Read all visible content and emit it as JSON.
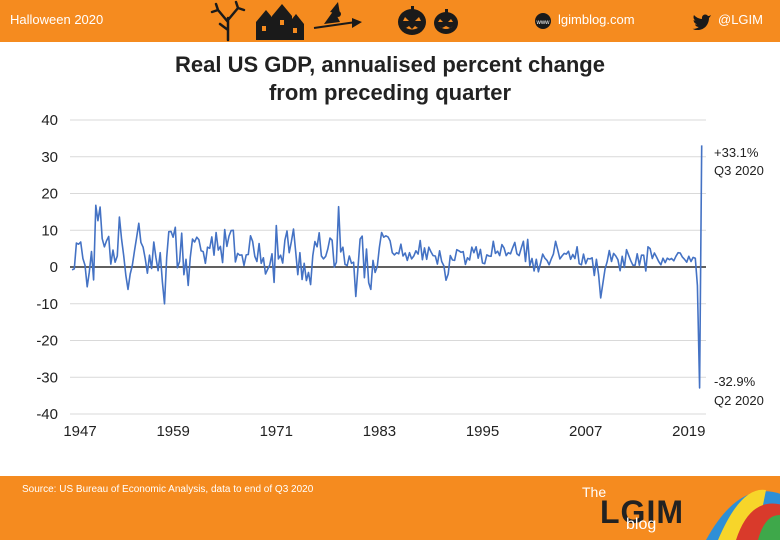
{
  "header": {
    "left_text": "Halloween 2020",
    "site_text": "lgimblog.com",
    "twitter_handle": "@LGIM",
    "icons": [
      "tree-icon",
      "haunted-house-icon",
      "witch-icon",
      "pumpkin-icon",
      "pumpkin-icon"
    ]
  },
  "footer": {
    "source": "Source: US Bureau of Economic Analysis, data to end of Q3 2020",
    "brand_the": "The",
    "brand_name": "LGIM",
    "brand_blog": "blog"
  },
  "colors": {
    "bar": "#f58b1f",
    "series": "#4472c4",
    "grid": "#d9d9d9"
  },
  "chart_data": {
    "type": "line",
    "title_line1": "Real US GDP, annualised percent change",
    "title_line2": "from preceding quarter",
    "xlabel": "",
    "ylabel": "",
    "ylim": [
      -40,
      40
    ],
    "yticks": [
      40,
      30,
      20,
      10,
      0,
      -10,
      -20,
      -30,
      -40
    ],
    "xlim": [
      1947,
      2021
    ],
    "xticks": [
      1947,
      1959,
      1971,
      1983,
      1995,
      2007,
      2019
    ],
    "grid": true,
    "legend": "none",
    "series": [
      {
        "values": [
          [
            1947.25,
            -0.8
          ],
          [
            1947.5,
            -0.5
          ],
          [
            1947.75,
            6.5
          ],
          [
            1948.0,
            6.2
          ],
          [
            1948.25,
            6.8
          ],
          [
            1948.5,
            2.3
          ],
          [
            1948.75,
            0.5
          ],
          [
            1949.0,
            -5.4
          ],
          [
            1949.25,
            -1.4
          ],
          [
            1949.5,
            4.2
          ],
          [
            1949.75,
            -3.5
          ],
          [
            1950.0,
            16.8
          ],
          [
            1950.25,
            12.6
          ],
          [
            1950.5,
            16.3
          ],
          [
            1950.75,
            7.7
          ],
          [
            1951.0,
            5.5
          ],
          [
            1951.25,
            7.1
          ],
          [
            1951.5,
            8.3
          ],
          [
            1951.75,
            0.8
          ],
          [
            1952.0,
            4.6
          ],
          [
            1952.25,
            1.3
          ],
          [
            1952.5,
            3.0
          ],
          [
            1952.75,
            13.6
          ],
          [
            1953.0,
            7.5
          ],
          [
            1953.25,
            3.1
          ],
          [
            1953.5,
            -2.4
          ],
          [
            1953.75,
            -6.1
          ],
          [
            1954.0,
            -1.9
          ],
          [
            1954.25,
            0.4
          ],
          [
            1954.5,
            4.4
          ],
          [
            1954.75,
            8.0
          ],
          [
            1955.0,
            11.9
          ],
          [
            1955.25,
            6.7
          ],
          [
            1955.5,
            5.4
          ],
          [
            1955.75,
            2.3
          ],
          [
            1956.0,
            -1.7
          ],
          [
            1956.25,
            3.2
          ],
          [
            1956.5,
            -0.4
          ],
          [
            1956.75,
            6.8
          ],
          [
            1957.0,
            2.6
          ],
          [
            1957.25,
            -1.0
          ],
          [
            1957.5,
            3.9
          ],
          [
            1957.75,
            -4.1
          ],
          [
            1958.0,
            -10.0
          ],
          [
            1958.25,
            2.6
          ],
          [
            1958.5,
            9.6
          ],
          [
            1958.75,
            9.7
          ],
          [
            1959.0,
            8.1
          ],
          [
            1959.25,
            10.8
          ],
          [
            1959.5,
            -0.2
          ],
          [
            1959.75,
            1.5
          ],
          [
            1960.0,
            9.2
          ],
          [
            1960.25,
            -2.1
          ],
          [
            1960.5,
            2.1
          ],
          [
            1960.75,
            -5.0
          ],
          [
            1961.0,
            2.7
          ],
          [
            1961.25,
            7.6
          ],
          [
            1961.5,
            6.8
          ],
          [
            1961.75,
            8.1
          ],
          [
            1962.0,
            7.4
          ],
          [
            1962.25,
            4.4
          ],
          [
            1962.5,
            4.2
          ],
          [
            1962.75,
            1.0
          ],
          [
            1963.0,
            5.4
          ],
          [
            1963.25,
            5.1
          ],
          [
            1963.5,
            8.2
          ],
          [
            1963.75,
            3.2
          ],
          [
            1964.0,
            9.4
          ],
          [
            1964.25,
            4.6
          ],
          [
            1964.5,
            5.6
          ],
          [
            1964.75,
            1.2
          ],
          [
            1965.0,
            10.2
          ],
          [
            1965.25,
            5.6
          ],
          [
            1965.5,
            8.4
          ],
          [
            1965.75,
            9.9
          ],
          [
            1966.0,
            10.0
          ],
          [
            1966.25,
            1.4
          ],
          [
            1966.5,
            3.7
          ],
          [
            1966.75,
            3.2
          ],
          [
            1967.0,
            3.3
          ],
          [
            1967.25,
            0.4
          ],
          [
            1967.5,
            3.3
          ],
          [
            1967.75,
            3.4
          ],
          [
            1968.0,
            8.5
          ],
          [
            1968.25,
            7.0
          ],
          [
            1968.5,
            2.9
          ],
          [
            1968.75,
            1.5
          ],
          [
            1969.0,
            6.4
          ],
          [
            1969.25,
            1.0
          ],
          [
            1969.5,
            2.5
          ],
          [
            1969.75,
            -1.9
          ],
          [
            1970.0,
            -0.6
          ],
          [
            1970.25,
            0.6
          ],
          [
            1970.5,
            3.6
          ],
          [
            1970.75,
            -4.2
          ],
          [
            1971.0,
            11.3
          ],
          [
            1971.25,
            2.2
          ],
          [
            1971.5,
            3.2
          ],
          [
            1971.75,
            1.1
          ],
          [
            1972.0,
            7.3
          ],
          [
            1972.25,
            9.8
          ],
          [
            1972.5,
            3.9
          ],
          [
            1972.75,
            6.8
          ],
          [
            1973.0,
            10.3
          ],
          [
            1973.25,
            4.4
          ],
          [
            1973.5,
            -2.1
          ],
          [
            1973.75,
            3.9
          ],
          [
            1974.0,
            -3.4
          ],
          [
            1974.25,
            1.0
          ],
          [
            1974.5,
            -3.7
          ],
          [
            1974.75,
            -1.5
          ],
          [
            1975.0,
            -4.8
          ],
          [
            1975.25,
            3.1
          ],
          [
            1975.5,
            6.9
          ],
          [
            1975.75,
            5.5
          ],
          [
            1976.0,
            9.3
          ],
          [
            1976.25,
            3.0
          ],
          [
            1976.5,
            2.2
          ],
          [
            1976.75,
            2.9
          ],
          [
            1977.0,
            4.9
          ],
          [
            1977.25,
            7.9
          ],
          [
            1977.5,
            7.3
          ],
          [
            1977.75,
            0.0
          ],
          [
            1978.0,
            1.3
          ],
          [
            1978.25,
            16.4
          ],
          [
            1978.5,
            4.1
          ],
          [
            1978.75,
            5.4
          ],
          [
            1979.0,
            0.7
          ],
          [
            1979.25,
            0.4
          ],
          [
            1979.5,
            3.0
          ],
          [
            1979.75,
            1.0
          ],
          [
            1980.0,
            1.3
          ],
          [
            1980.25,
            -8.0
          ],
          [
            1980.5,
            -0.5
          ],
          [
            1980.75,
            7.6
          ],
          [
            1981.0,
            8.4
          ],
          [
            1981.25,
            -2.9
          ],
          [
            1981.5,
            4.9
          ],
          [
            1981.75,
            -4.3
          ],
          [
            1982.0,
            -6.1
          ],
          [
            1982.25,
            1.8
          ],
          [
            1982.5,
            -1.5
          ],
          [
            1982.75,
            0.2
          ],
          [
            1983.0,
            5.4
          ],
          [
            1983.25,
            9.4
          ],
          [
            1983.5,
            8.1
          ],
          [
            1983.75,
            8.5
          ],
          [
            1984.0,
            8.2
          ],
          [
            1984.25,
            7.1
          ],
          [
            1984.5,
            3.9
          ],
          [
            1984.75,
            3.3
          ],
          [
            1985.0,
            3.9
          ],
          [
            1985.25,
            3.6
          ],
          [
            1985.5,
            6.2
          ],
          [
            1985.75,
            3.0
          ],
          [
            1986.0,
            3.8
          ],
          [
            1986.25,
            1.8
          ],
          [
            1986.5,
            3.9
          ],
          [
            1986.75,
            2.2
          ],
          [
            1987.0,
            3.0
          ],
          [
            1987.25,
            4.4
          ],
          [
            1987.5,
            3.5
          ],
          [
            1987.75,
            7.2
          ],
          [
            1988.0,
            2.0
          ],
          [
            1988.25,
            5.2
          ],
          [
            1988.5,
            2.1
          ],
          [
            1988.75,
            5.4
          ],
          [
            1989.0,
            4.1
          ],
          [
            1989.25,
            3.1
          ],
          [
            1989.5,
            3.0
          ],
          [
            1989.75,
            0.8
          ],
          [
            1990.0,
            4.4
          ],
          [
            1990.25,
            1.5
          ],
          [
            1990.5,
            0.3
          ],
          [
            1990.75,
            -3.6
          ],
          [
            1991.0,
            -1.9
          ],
          [
            1991.25,
            3.1
          ],
          [
            1991.5,
            1.9
          ],
          [
            1991.75,
            1.8
          ],
          [
            1992.0,
            4.7
          ],
          [
            1992.25,
            4.4
          ],
          [
            1992.5,
            4.0
          ],
          [
            1992.75,
            4.2
          ],
          [
            1993.0,
            0.7
          ],
          [
            1993.25,
            2.5
          ],
          [
            1993.5,
            1.9
          ],
          [
            1993.75,
            5.4
          ],
          [
            1994.0,
            3.9
          ],
          [
            1994.25,
            5.5
          ],
          [
            1994.5,
            2.4
          ],
          [
            1994.75,
            4.8
          ],
          [
            1995.0,
            1.1
          ],
          [
            1995.25,
            0.9
          ],
          [
            1995.5,
            3.3
          ],
          [
            1995.75,
            3.0
          ],
          [
            1996.0,
            2.9
          ],
          [
            1996.25,
            7.0
          ],
          [
            1996.5,
            3.7
          ],
          [
            1996.75,
            4.3
          ],
          [
            1997.0,
            3.1
          ],
          [
            1997.25,
            6.1
          ],
          [
            1997.5,
            5.2
          ],
          [
            1997.75,
            3.1
          ],
          [
            1998.0,
            3.9
          ],
          [
            1998.25,
            3.6
          ],
          [
            1998.5,
            5.2
          ],
          [
            1998.75,
            6.7
          ],
          [
            1999.0,
            3.6
          ],
          [
            1999.25,
            3.1
          ],
          [
            1999.5,
            5.1
          ],
          [
            1999.75,
            7.0
          ],
          [
            2000.0,
            1.5
          ],
          [
            2000.25,
            7.5
          ],
          [
            2000.5,
            0.4
          ],
          [
            2000.75,
            2.3
          ],
          [
            2001.0,
            -1.1
          ],
          [
            2001.25,
            2.1
          ],
          [
            2001.5,
            -1.3
          ],
          [
            2001.75,
            1.1
          ],
          [
            2002.0,
            3.5
          ],
          [
            2002.25,
            2.4
          ],
          [
            2002.5,
            1.8
          ],
          [
            2002.75,
            0.6
          ],
          [
            2003.0,
            2.2
          ],
          [
            2003.25,
            3.5
          ],
          [
            2003.5,
            7.0
          ],
          [
            2003.75,
            4.7
          ],
          [
            2004.0,
            2.2
          ],
          [
            2004.25,
            3.0
          ],
          [
            2004.5,
            3.7
          ],
          [
            2004.75,
            3.5
          ],
          [
            2005.0,
            4.3
          ],
          [
            2005.25,
            2.1
          ],
          [
            2005.5,
            3.4
          ],
          [
            2005.75,
            2.3
          ],
          [
            2006.0,
            5.5
          ],
          [
            2006.25,
            0.9
          ],
          [
            2006.5,
            0.6
          ],
          [
            2006.75,
            3.5
          ],
          [
            2007.0,
            0.9
          ],
          [
            2007.25,
            2.3
          ],
          [
            2007.5,
            2.2
          ],
          [
            2007.75,
            2.5
          ],
          [
            2008.0,
            -2.3
          ],
          [
            2008.25,
            2.1
          ],
          [
            2008.5,
            -2.1
          ],
          [
            2008.75,
            -8.4
          ],
          [
            2009.0,
            -4.4
          ],
          [
            2009.25,
            -0.6
          ],
          [
            2009.5,
            1.5
          ],
          [
            2009.75,
            4.5
          ],
          [
            2010.0,
            1.5
          ],
          [
            2010.25,
            3.7
          ],
          [
            2010.5,
            3.0
          ],
          [
            2010.75,
            2.0
          ],
          [
            2011.0,
            -1.0
          ],
          [
            2011.25,
            2.9
          ],
          [
            2011.5,
            -0.1
          ],
          [
            2011.75,
            4.7
          ],
          [
            2012.0,
            3.2
          ],
          [
            2012.25,
            1.7
          ],
          [
            2012.5,
            0.5
          ],
          [
            2012.75,
            0.5
          ],
          [
            2013.0,
            3.6
          ],
          [
            2013.25,
            0.5
          ],
          [
            2013.5,
            3.2
          ],
          [
            2013.75,
            3.2
          ],
          [
            2014.0,
            -1.1
          ],
          [
            2014.25,
            5.5
          ],
          [
            2014.5,
            5.0
          ],
          [
            2014.75,
            2.3
          ],
          [
            2015.0,
            3.8
          ],
          [
            2015.25,
            2.7
          ],
          [
            2015.5,
            1.5
          ],
          [
            2015.75,
            0.6
          ],
          [
            2016.0,
            2.4
          ],
          [
            2016.25,
            1.2
          ],
          [
            2016.5,
            2.4
          ],
          [
            2016.75,
            2.0
          ],
          [
            2017.0,
            2.3
          ],
          [
            2017.25,
            1.7
          ],
          [
            2017.5,
            2.9
          ],
          [
            2017.75,
            3.9
          ],
          [
            2018.0,
            3.8
          ],
          [
            2018.25,
            2.7
          ],
          [
            2018.5,
            2.1
          ],
          [
            2018.75,
            1.3
          ],
          [
            2019.0,
            2.9
          ],
          [
            2019.25,
            1.5
          ],
          [
            2019.5,
            2.6
          ],
          [
            2019.75,
            2.4
          ],
          [
            2020.0,
            -5.0
          ],
          [
            2020.25,
            -32.9
          ],
          [
            2020.5,
            33.1
          ]
        ]
      }
    ],
    "annotations": [
      {
        "text_line1": "+33.1%",
        "text_line2": "Q3 2020"
      },
      {
        "text_line1": "-32.9%",
        "text_line2": "Q2 2020"
      }
    ]
  }
}
